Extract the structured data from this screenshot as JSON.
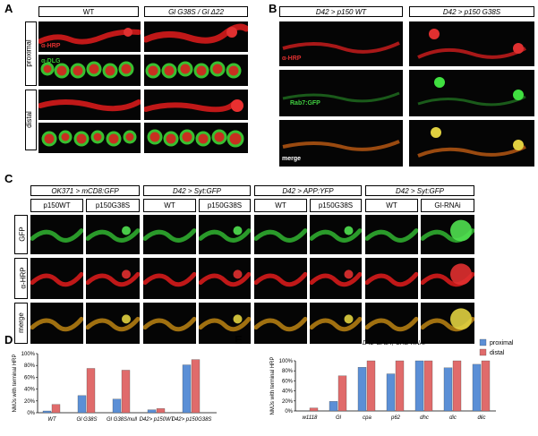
{
  "panels": {
    "A": {
      "label": "A",
      "col_headers": [
        "WT",
        "Gl G38S / Gl Δ22"
      ],
      "row_headers": [
        "proximal",
        "distal"
      ],
      "stain_labels": [
        "α-HRP",
        "α-DLG"
      ],
      "colors": {
        "red": "#d42020",
        "green": "#38c030"
      }
    },
    "B": {
      "label": "B",
      "col_headers": [
        "D42 > p150 WT",
        "D42 > p150 G38S"
      ],
      "stain_labels": [
        "α-HRP",
        "Rab7:GFP",
        "merge"
      ]
    },
    "C": {
      "label": "C",
      "group_headers": [
        "OK371 > mCD8:GFP",
        "D42 > Syt:GFP",
        "D42 > APP:YFP",
        "D42 > Syt:GFP"
      ],
      "col_headers": [
        "p150WT",
        "p150G38S",
        "WT",
        "p150G38S",
        "WT",
        "p150G38S",
        "WT",
        "Gl-RNAi"
      ],
      "row_headers": [
        "GFP",
        "α-HRP",
        "merge"
      ]
    },
    "D": {
      "label": "D",
      "ylabel": "NMJs with terminal HRP"
    },
    "E": {
      "label": "E",
      "title": "D42-GAL4, UAS-RNAi",
      "ylabel": "NMJs with terminal HRP"
    }
  },
  "chart_data": [
    {
      "type": "bar",
      "panel": "D",
      "categories": [
        "WT",
        "Gl G38S",
        "Gl G38S/null",
        "D42> p150WT",
        "D42> p150G38S"
      ],
      "series": [
        {
          "values": [
            3,
            29,
            23,
            5,
            81
          ],
          "color": "#5b8fd6"
        },
        {
          "values": [
            14,
            75,
            72,
            7,
            90
          ],
          "color": "#e06b6b"
        }
      ],
      "ylabel": "NMJs with terminal HRP",
      "ylim": [
        0,
        100
      ],
      "yticks": [
        "0%",
        "20%",
        "40%",
        "60%",
        "80%",
        "100%"
      ]
    },
    {
      "type": "bar",
      "panel": "E",
      "title": "D42-GAL4, UAS-RNAi",
      "categories": [
        "w1118",
        "Gl",
        "cpa",
        "p62",
        "dhc",
        "dic",
        "dlic"
      ],
      "series": [
        {
          "name": "proximal",
          "values": [
            0,
            19,
            87,
            74,
            100,
            86,
            93
          ],
          "color": "#5b8fd6"
        },
        {
          "name": "distal",
          "values": [
            6,
            70,
            100,
            100,
            100,
            100,
            100
          ],
          "color": "#e06b6b"
        }
      ],
      "ylabel": "NMJs with terminal HRP",
      "ylim": [
        0,
        100
      ],
      "yticks": [
        "0%",
        "20%",
        "40%",
        "60%",
        "80%",
        "100%"
      ],
      "legend_position": "top-right"
    }
  ]
}
